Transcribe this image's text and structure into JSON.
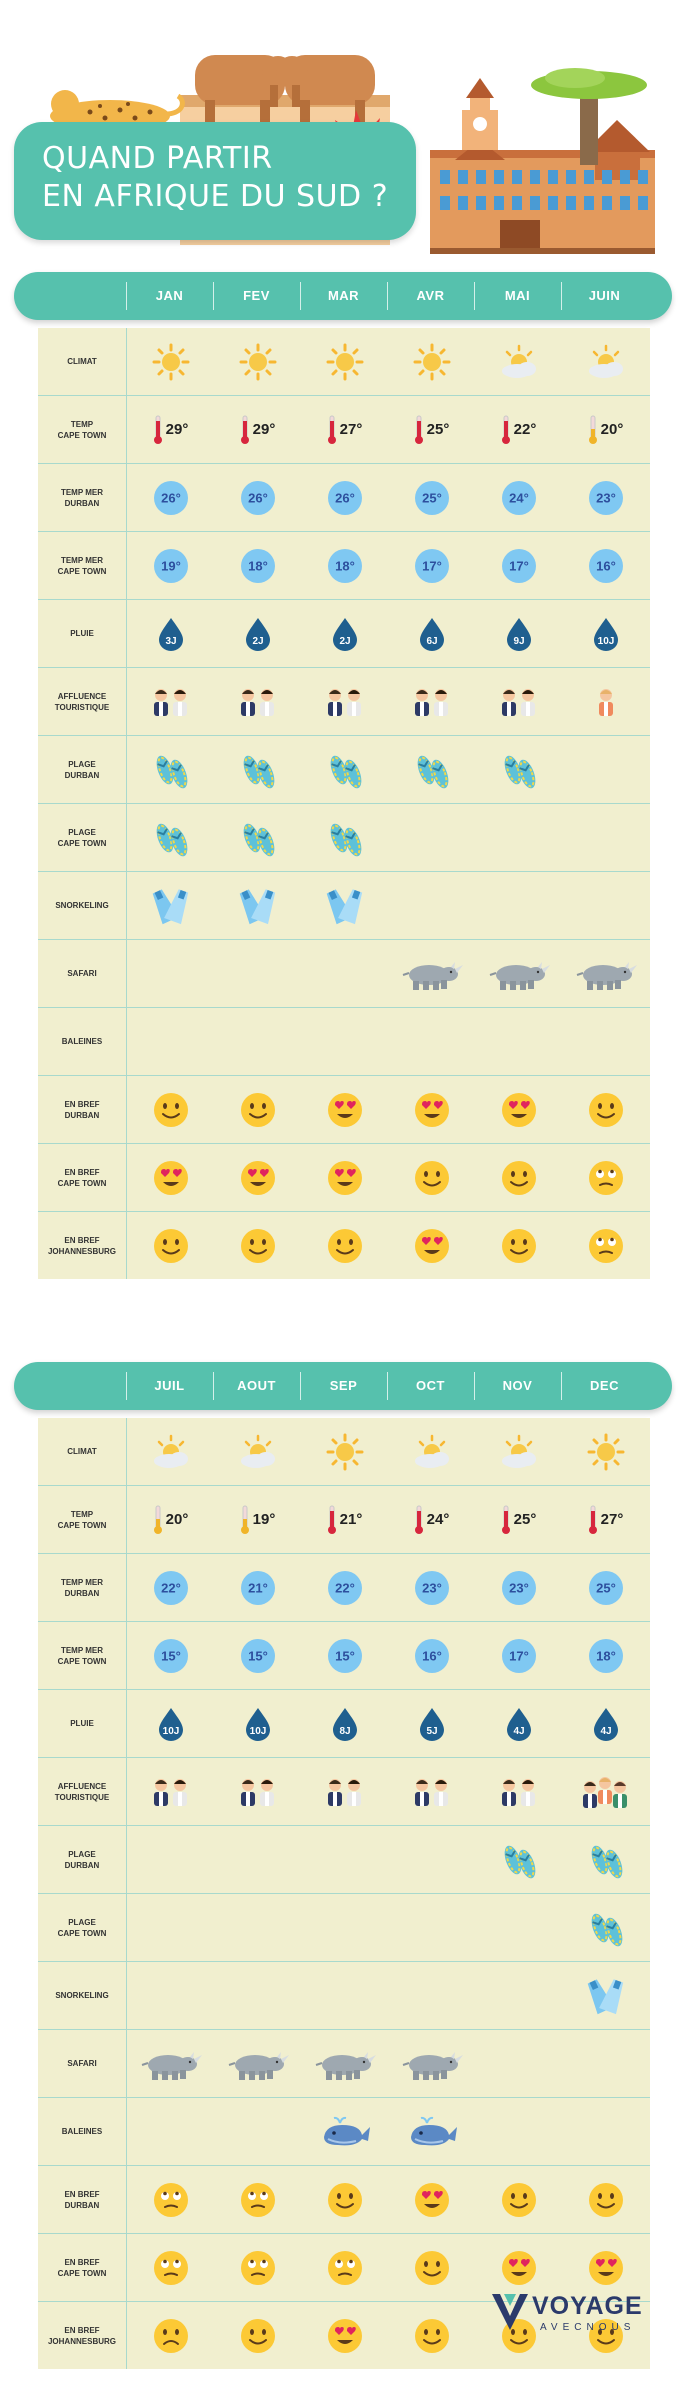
{
  "title_line1": "QUAND PARTIR",
  "title_line2": "EN AFRIQUE DU SUD ?",
  "logo": {
    "name": "VOYAGE",
    "sub": "AVECNOUS"
  },
  "colors": {
    "accent": "#56c1ad",
    "cell_bg": "#f1efcf",
    "temp_blue": "#7fc8f2",
    "temp_text": "#2d4f9e",
    "drop_blue": "#1f5f8f"
  },
  "row_labels": {
    "climat": "CLIMAT",
    "temp_cape": "TEMP\nCAPE TOWN",
    "mer_durban": "TEMP MER\nDURBAN",
    "mer_cape": "TEMP MER\nCAPE TOWN",
    "pluie": "PLUIE",
    "affluence": "AFFLUENCE\nTOURISTIQUE",
    "plage_durban": "PLAGE\nDURBAN",
    "plage_cape": "PLAGE\nCAPE TOWN",
    "snorkeling": "SNORKELING",
    "safari": "SAFARI",
    "baleines": "BALEINES",
    "bref_durban": "EN BREF\nDURBAN",
    "bref_cape": "EN BREF\nCAPE TOWN",
    "bref_joburg": "EN BREF\nJOHANNESBURG"
  },
  "sections": [
    {
      "months": [
        "JAN",
        "FEV",
        "MAR",
        "AVR",
        "MAI",
        "JUIN"
      ],
      "climat": [
        "sun",
        "sun",
        "sun",
        "sun",
        "cloud",
        "cloud"
      ],
      "temp_cape": [
        "29°",
        "29°",
        "27°",
        "25°",
        "22°",
        "20°"
      ],
      "mer_durban": [
        "26°",
        "26°",
        "26°",
        "25°",
        "24°",
        "23°"
      ],
      "mer_cape": [
        "19°",
        "18°",
        "18°",
        "17°",
        "17°",
        "16°"
      ],
      "pluie": [
        "3J",
        "2J",
        "2J",
        "6J",
        "9J",
        "10J"
      ],
      "affluence": [
        "couple",
        "couple",
        "couple",
        "couple",
        "couple",
        "single"
      ],
      "plage_durban": [
        true,
        true,
        true,
        true,
        true,
        false
      ],
      "plage_cape": [
        true,
        true,
        true,
        false,
        false,
        false
      ],
      "snorkeling": [
        true,
        true,
        true,
        false,
        false,
        false
      ],
      "safari": [
        false,
        false,
        false,
        true,
        true,
        true
      ],
      "baleines": [
        false,
        false,
        false,
        false,
        false,
        false
      ],
      "bref_durban": [
        "smile",
        "smile",
        "love",
        "love",
        "love",
        "smile"
      ],
      "bref_cape": [
        "love",
        "love",
        "love",
        "smile",
        "smile",
        "eyeroll"
      ],
      "bref_joburg": [
        "smile",
        "smile",
        "smile",
        "love",
        "smile",
        "eyeroll"
      ]
    },
    {
      "months": [
        "JUIL",
        "AOUT",
        "SEP",
        "OCT",
        "NOV",
        "DEC"
      ],
      "climat": [
        "cloud",
        "cloud",
        "sun",
        "cloud",
        "cloud",
        "sun"
      ],
      "temp_cape": [
        "20°",
        "19°",
        "21°",
        "24°",
        "25°",
        "27°"
      ],
      "mer_durban": [
        "22°",
        "21°",
        "22°",
        "23°",
        "23°",
        "25°"
      ],
      "mer_cape": [
        "15°",
        "15°",
        "15°",
        "16°",
        "17°",
        "18°"
      ],
      "pluie": [
        "10J",
        "10J",
        "8J",
        "5J",
        "4J",
        "4J"
      ],
      "affluence": [
        "couple",
        "couple",
        "couple",
        "couple",
        "couple",
        "group"
      ],
      "plage_durban": [
        false,
        false,
        false,
        false,
        true,
        true
      ],
      "plage_cape": [
        false,
        false,
        false,
        false,
        false,
        true
      ],
      "snorkeling": [
        false,
        false,
        false,
        false,
        false,
        true
      ],
      "safari": [
        true,
        true,
        true,
        true,
        false,
        false
      ],
      "baleines": [
        false,
        false,
        true,
        true,
        false,
        false
      ],
      "bref_durban": [
        "eyeroll",
        "eyeroll",
        "smile",
        "love",
        "smile",
        "smile"
      ],
      "bref_cape": [
        "eyeroll",
        "eyeroll",
        "eyeroll",
        "smile",
        "love",
        "love"
      ],
      "bref_joburg": [
        "frown",
        "smile",
        "love",
        "smile",
        "smile",
        "smile"
      ]
    }
  ]
}
